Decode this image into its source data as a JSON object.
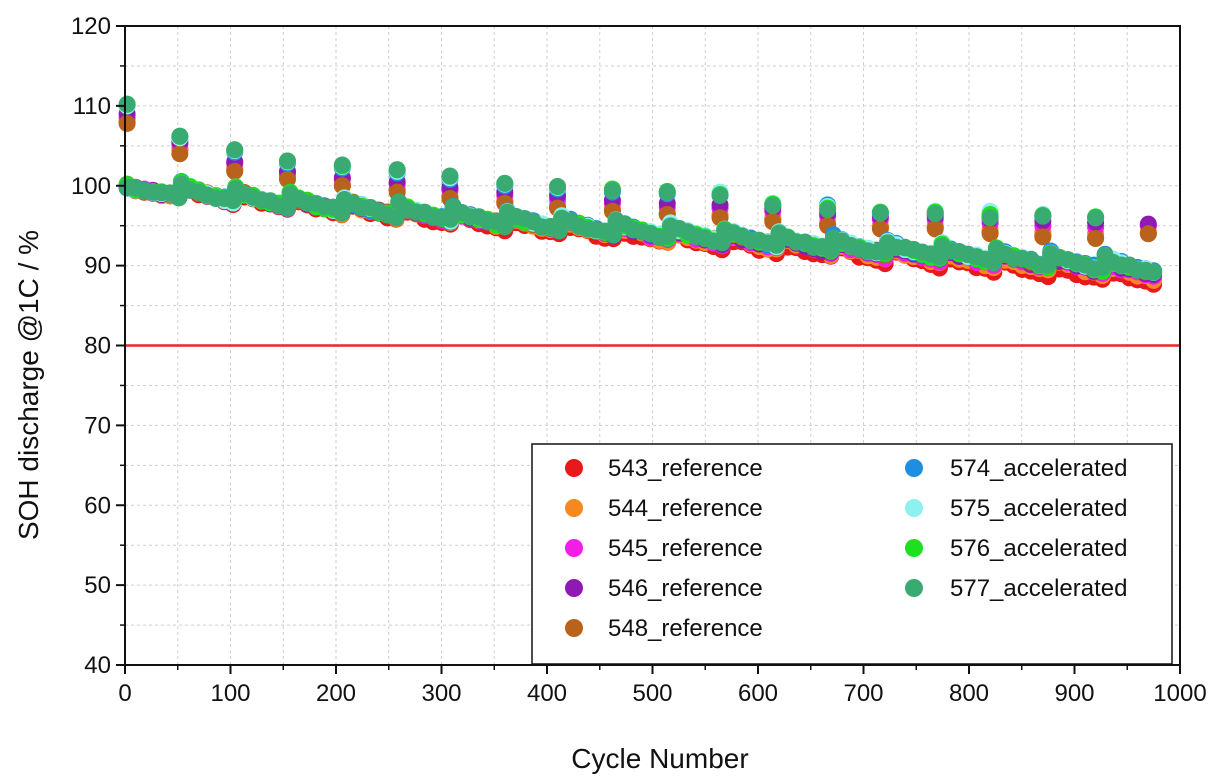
{
  "chart_data": {
    "type": "scatter",
    "xlabel": "Cycle Number",
    "ylabel": "SOH discharge @1C / %",
    "xlim": [
      0,
      1000
    ],
    "ylim": [
      40,
      120
    ],
    "x_ticks": [
      0,
      100,
      200,
      300,
      400,
      500,
      600,
      700,
      800,
      900,
      1000
    ],
    "y_ticks": [
      40,
      50,
      60,
      70,
      80,
      90,
      100,
      110,
      120
    ],
    "grid": true,
    "legend_position": "bottom-right",
    "reference_line": {
      "y": 80,
      "color": "#e8282b"
    },
    "series": [
      {
        "name": "543_reference",
        "color": "#e8181b",
        "checkups": [
          [
            2,
            108.0
          ],
          [
            52,
            104.5
          ],
          [
            104,
            102.0
          ],
          [
            154,
            101.0
          ],
          [
            206,
            100.0
          ],
          [
            258,
            99.5
          ],
          [
            308,
            98.5
          ],
          [
            360,
            98.0
          ],
          [
            410,
            97.5
          ],
          [
            462,
            97.0
          ],
          [
            514,
            96.5
          ],
          [
            564,
            96.2
          ],
          [
            614,
            95.8
          ],
          [
            666,
            95.2
          ],
          [
            716,
            94.8
          ],
          [
            768,
            94.8
          ],
          [
            820,
            94.2
          ],
          [
            870,
            93.8
          ],
          [
            920,
            93.5
          ],
          [
            970,
            94.0
          ]
        ],
        "segment_end": 88.2
      },
      {
        "name": "544_reference",
        "color": "#f5891f",
        "checkups": [
          [
            2,
            108.0
          ],
          [
            52,
            104.6
          ],
          [
            104,
            102.2
          ],
          [
            154,
            101.2
          ],
          [
            206,
            100.2
          ],
          [
            258,
            99.6
          ],
          [
            308,
            98.7
          ],
          [
            360,
            98.1
          ],
          [
            410,
            97.6
          ],
          [
            462,
            97.1
          ],
          [
            514,
            96.6
          ],
          [
            564,
            96.4
          ],
          [
            614,
            96.0
          ],
          [
            666,
            95.4
          ],
          [
            716,
            95.0
          ],
          [
            768,
            95.0
          ],
          [
            820,
            94.5
          ],
          [
            870,
            94.2
          ],
          [
            920,
            94.0
          ],
          [
            970,
            94.2
          ]
        ],
        "segment_end": 88.8
      },
      {
        "name": "545_reference",
        "color": "#f21ee6",
        "checkups": [
          [
            2,
            108.5
          ],
          [
            52,
            105.2
          ],
          [
            104,
            102.8
          ],
          [
            154,
            101.6
          ],
          [
            206,
            100.8
          ],
          [
            258,
            100.2
          ],
          [
            308,
            99.4
          ],
          [
            360,
            98.8
          ],
          [
            410,
            98.3
          ],
          [
            462,
            97.8
          ],
          [
            514,
            97.3
          ],
          [
            564,
            97.2
          ],
          [
            614,
            96.8
          ],
          [
            666,
            96.2
          ],
          [
            716,
            95.8
          ],
          [
            768,
            95.8
          ],
          [
            820,
            95.3
          ],
          [
            870,
            95.0
          ],
          [
            920,
            94.8
          ],
          [
            970,
            95.0
          ]
        ],
        "segment_end": 89.0
      },
      {
        "name": "546_reference",
        "color": "#8f1ab3",
        "checkups": [
          [
            2,
            109.0
          ],
          [
            52,
            105.5
          ],
          [
            104,
            103.0
          ],
          [
            154,
            101.8
          ],
          [
            206,
            101.0
          ],
          [
            258,
            100.5
          ],
          [
            308,
            99.8
          ],
          [
            360,
            99.2
          ],
          [
            410,
            98.8
          ],
          [
            462,
            98.2
          ],
          [
            514,
            97.8
          ],
          [
            564,
            97.6
          ],
          [
            614,
            97.2
          ],
          [
            666,
            96.6
          ],
          [
            716,
            96.2
          ],
          [
            768,
            96.2
          ],
          [
            820,
            95.8
          ],
          [
            870,
            95.6
          ],
          [
            920,
            95.4
          ],
          [
            970,
            95.2
          ]
        ],
        "segment_end": 89.2
      },
      {
        "name": "548_reference",
        "color": "#b8621b",
        "checkups": [
          [
            2,
            107.8
          ],
          [
            52,
            104.0
          ],
          [
            104,
            101.8
          ],
          [
            154,
            100.8
          ],
          [
            206,
            100.0
          ],
          [
            258,
            99.2
          ],
          [
            308,
            98.4
          ],
          [
            360,
            97.8
          ],
          [
            410,
            97.2
          ],
          [
            462,
            96.8
          ],
          [
            514,
            96.4
          ],
          [
            564,
            96.0
          ],
          [
            614,
            95.5
          ],
          [
            666,
            95.0
          ],
          [
            716,
            94.6
          ],
          [
            768,
            94.6
          ],
          [
            820,
            94.0
          ],
          [
            870,
            93.6
          ],
          [
            920,
            93.4
          ],
          [
            970,
            94.0
          ]
        ],
        "segment_end": 89.5
      },
      {
        "name": "574_accelerated",
        "color": "#1e8fe0",
        "checkups": [
          [
            2,
            110.0
          ],
          [
            52,
            106.0
          ],
          [
            104,
            104.2
          ],
          [
            154,
            102.8
          ],
          [
            206,
            102.2
          ],
          [
            258,
            101.6
          ],
          [
            308,
            100.8
          ],
          [
            360,
            100.0
          ],
          [
            410,
            99.6
          ],
          [
            462,
            99.2
          ],
          [
            514,
            99.0
          ],
          [
            564,
            98.8
          ],
          [
            614,
            97.6
          ],
          [
            666,
            97.6
          ],
          [
            716,
            96.6
          ],
          [
            768,
            96.6
          ],
          [
            820,
            96.2
          ],
          [
            870,
            96.2
          ],
          [
            920,
            96.0
          ]
        ],
        "segment_end": 89.6
      },
      {
        "name": "575_accelerated",
        "color": "#8ff0f0",
        "checkups": [
          [
            2,
            110.0
          ],
          [
            52,
            106.0
          ],
          [
            104,
            104.4
          ],
          [
            154,
            103.0
          ],
          [
            206,
            102.4
          ],
          [
            258,
            101.8
          ],
          [
            308,
            101.0
          ],
          [
            360,
            100.2
          ],
          [
            410,
            99.8
          ],
          [
            462,
            99.4
          ],
          [
            514,
            99.2
          ],
          [
            564,
            99.2
          ],
          [
            614,
            97.8
          ],
          [
            666,
            97.4
          ],
          [
            716,
            96.6
          ],
          [
            768,
            96.8
          ],
          [
            820,
            96.8
          ],
          [
            870,
            96.4
          ],
          [
            920,
            96.0
          ]
        ],
        "segment_end": 89.6
      },
      {
        "name": "576_accelerated",
        "color": "#1ee01e",
        "checkups": [
          [
            2,
            110.2
          ],
          [
            52,
            106.2
          ],
          [
            104,
            104.5
          ],
          [
            154,
            103.1
          ],
          [
            206,
            102.5
          ],
          [
            258,
            102.0
          ],
          [
            308,
            101.2
          ],
          [
            360,
            100.3
          ],
          [
            410,
            99.9
          ],
          [
            462,
            99.6
          ],
          [
            514,
            99.3
          ],
          [
            564,
            98.9
          ],
          [
            614,
            97.7
          ],
          [
            666,
            97.2
          ],
          [
            716,
            96.7
          ],
          [
            768,
            96.7
          ],
          [
            820,
            96.4
          ],
          [
            870,
            96.3
          ],
          [
            920,
            96.1
          ]
        ],
        "segment_end": 89.4
      },
      {
        "name": "577_accelerated",
        "color": "#3aaa73",
        "checkups": [
          [
            2,
            110.2
          ],
          [
            52,
            106.2
          ],
          [
            104,
            104.5
          ],
          [
            154,
            103.1
          ],
          [
            206,
            102.6
          ],
          [
            258,
            102.0
          ],
          [
            308,
            101.2
          ],
          [
            360,
            100.3
          ],
          [
            410,
            99.9
          ],
          [
            462,
            99.4
          ],
          [
            514,
            99.2
          ],
          [
            564,
            98.8
          ],
          [
            614,
            97.5
          ],
          [
            666,
            97.0
          ],
          [
            716,
            96.6
          ],
          [
            768,
            96.5
          ],
          [
            820,
            96.0
          ],
          [
            870,
            96.2
          ],
          [
            920,
            96.0
          ]
        ],
        "segment_end": 89.5
      }
    ]
  }
}
